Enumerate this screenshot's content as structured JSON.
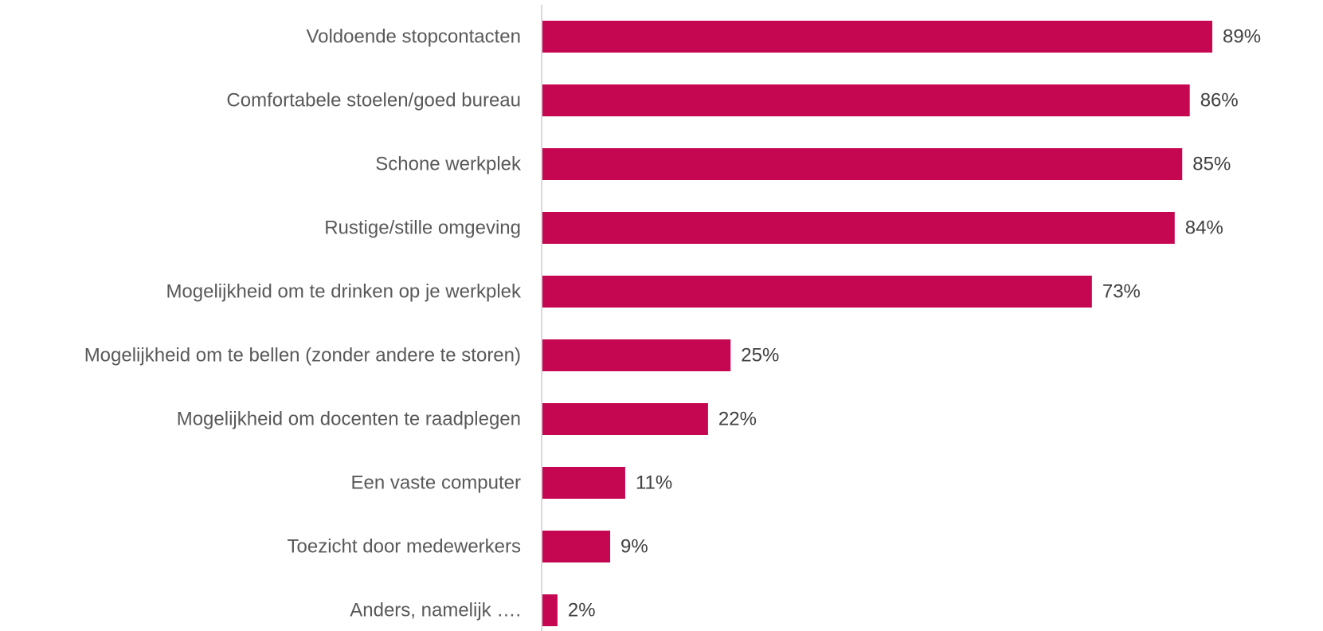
{
  "chart_data": {
    "type": "bar",
    "orientation": "horizontal",
    "categories": [
      "Voldoende stopcontacten",
      "Comfortabele stoelen/goed bureau",
      "Schone werkplek",
      "Rustige/stille omgeving",
      "Mogelijkheid om te drinken op je werkplek",
      "Mogelijkheid om te bellen (zonder andere te storen)",
      "Mogelijkheid om docenten te raadplegen",
      "Een vaste computer",
      "Toezicht door medewerkers",
      "Anders, namelijk …."
    ],
    "values": [
      89,
      86,
      85,
      84,
      73,
      25,
      22,
      11,
      9,
      2
    ],
    "value_labels": [
      "89%",
      "86%",
      "85%",
      "84%",
      "73%",
      "25%",
      "22%",
      "11%",
      "9%",
      "2%"
    ],
    "unit": "%",
    "xlim": [
      0,
      100
    ],
    "grid": false,
    "legend": "none",
    "colors": {
      "bar": "#C50751",
      "axis": "#D9D9D9",
      "category_text": "#595959",
      "value_text": "#404040"
    }
  }
}
